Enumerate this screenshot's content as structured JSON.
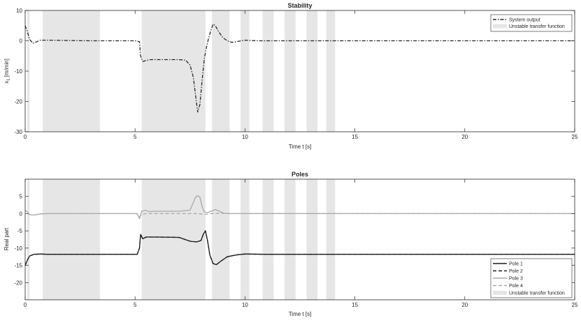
{
  "chart_data": [
    {
      "type": "line",
      "title": "Stability",
      "xlabel": "Time t [s]",
      "ylabel_main": "x",
      "ylabel_sub": "1",
      "ylabel_unit": "[m/min]",
      "xlim": [
        0,
        25
      ],
      "ylim": [
        -30,
        10
      ],
      "xticks": [
        0,
        5,
        10,
        15,
        20,
        25
      ],
      "yticks": [
        -30,
        -20,
        -10,
        0,
        10
      ],
      "grid": false,
      "legend_position": "top-right",
      "legend": [
        "System output",
        "Unstable transfer function"
      ],
      "unstable_intervals": [
        [
          0.1,
          0.2
        ],
        [
          0.8,
          3.4
        ],
        [
          5.3,
          8.2
        ],
        [
          8.5,
          9.3
        ],
        [
          9.8,
          10.2
        ],
        [
          10.8,
          11.3
        ],
        [
          11.8,
          12.3
        ],
        [
          12.8,
          13.3
        ],
        [
          13.7,
          14.1
        ]
      ],
      "series": [
        {
          "name": "System output",
          "color": "#262626",
          "dash": "dashdot",
          "points": [
            [
              0,
              5
            ],
            [
              0.1,
              3
            ],
            [
              0.2,
              0.5
            ],
            [
              0.35,
              -0.8
            ],
            [
              0.5,
              -0.4
            ],
            [
              0.7,
              0.2
            ],
            [
              1.0,
              0.2
            ],
            [
              2,
              0.1
            ],
            [
              3,
              0
            ],
            [
              4,
              0
            ],
            [
              5.0,
              0
            ],
            [
              5.2,
              -0.3
            ],
            [
              5.25,
              -5
            ],
            [
              5.35,
              -6.8
            ],
            [
              5.5,
              -6.5
            ],
            [
              5.7,
              -6.2
            ],
            [
              6.5,
              -6.2
            ],
            [
              7.0,
              -6.2
            ],
            [
              7.3,
              -6.4
            ],
            [
              7.5,
              -8
            ],
            [
              7.65,
              -12
            ],
            [
              7.75,
              -18
            ],
            [
              7.85,
              -23.5
            ],
            [
              7.95,
              -21
            ],
            [
              8.05,
              -13
            ],
            [
              8.15,
              -6
            ],
            [
              8.25,
              -2
            ],
            [
              8.35,
              1
            ],
            [
              8.45,
              3.5
            ],
            [
              8.55,
              5.5
            ],
            [
              8.65,
              5
            ],
            [
              8.8,
              3
            ],
            [
              9.0,
              1
            ],
            [
              9.2,
              0
            ],
            [
              9.4,
              -0.5
            ],
            [
              9.6,
              -0.3
            ],
            [
              10,
              0.2
            ],
            [
              10.5,
              0
            ],
            [
              11,
              0
            ],
            [
              12,
              0
            ],
            [
              14,
              0
            ],
            [
              16,
              0
            ],
            [
              20,
              0
            ],
            [
              25,
              0
            ]
          ]
        }
      ]
    },
    {
      "type": "line",
      "title": "Poles",
      "xlabel": "Time t [s]",
      "ylabel": "Real part",
      "xlim": [
        0,
        25
      ],
      "ylim": [
        -25,
        10
      ],
      "xticks": [
        0,
        5,
        10,
        15,
        20,
        25
      ],
      "yticks": [
        -20,
        -15,
        -10,
        -5,
        0,
        5
      ],
      "grid": false,
      "legend_position": "bottom-right",
      "legend": [
        "Pole 1",
        "Pole 2",
        "Pole 3",
        "Pole 4",
        "Unstable transfer function"
      ],
      "unstable_intervals": [
        [
          0.1,
          0.2
        ],
        [
          0.8,
          3.4
        ],
        [
          5.3,
          8.2
        ],
        [
          8.5,
          9.3
        ],
        [
          9.8,
          10.2
        ],
        [
          10.8,
          11.3
        ],
        [
          11.8,
          12.3
        ],
        [
          12.8,
          13.3
        ],
        [
          13.7,
          14.1
        ]
      ],
      "series": [
        {
          "name": "Pole 1",
          "color": "#1a1a1a",
          "dash": "solid",
          "points": [
            [
              0,
              -15
            ],
            [
              0.1,
              -13.5
            ],
            [
              0.2,
              -12.3
            ],
            [
              0.4,
              -11.8
            ],
            [
              0.7,
              -11.7
            ],
            [
              1,
              -11.8
            ],
            [
              2,
              -11.8
            ],
            [
              3,
              -11.8
            ],
            [
              4,
              -11.8
            ],
            [
              5.1,
              -11.8
            ],
            [
              5.2,
              -10
            ],
            [
              5.25,
              -6
            ],
            [
              5.35,
              -7.3
            ],
            [
              5.5,
              -6.8
            ],
            [
              6,
              -6.8
            ],
            [
              7,
              -6.9
            ],
            [
              7.5,
              -8
            ],
            [
              7.8,
              -8.2
            ],
            [
              8.0,
              -7.8
            ],
            [
              8.1,
              -6
            ],
            [
              8.2,
              -5
            ],
            [
              8.3,
              -8
            ],
            [
              8.4,
              -12
            ],
            [
              8.55,
              -14.5
            ],
            [
              8.7,
              -14.8
            ],
            [
              8.9,
              -13.8
            ],
            [
              9.2,
              -12.5
            ],
            [
              9.6,
              -12
            ],
            [
              10,
              -11.7
            ],
            [
              11,
              -11.8
            ],
            [
              12,
              -11.8
            ],
            [
              15,
              -11.8
            ],
            [
              20,
              -11.8
            ],
            [
              25,
              -11.8
            ]
          ]
        },
        {
          "name": "Pole 2",
          "color": "#1a1a1a",
          "dash": "dashed",
          "points": [
            [
              0,
              -15
            ],
            [
              0.1,
              -13.5
            ],
            [
              0.2,
              -12.3
            ],
            [
              0.4,
              -11.8
            ],
            [
              0.7,
              -11.7
            ],
            [
              1,
              -11.8
            ],
            [
              2,
              -11.8
            ],
            [
              3,
              -11.8
            ],
            [
              4,
              -11.8
            ],
            [
              5.1,
              -11.8
            ],
            [
              5.2,
              -10
            ],
            [
              5.25,
              -6
            ],
            [
              5.35,
              -7.3
            ],
            [
              5.5,
              -6.8
            ],
            [
              6,
              -6.8
            ],
            [
              7,
              -6.9
            ],
            [
              7.5,
              -8
            ],
            [
              7.8,
              -8.2
            ],
            [
              8.0,
              -7.8
            ],
            [
              8.1,
              -6
            ],
            [
              8.2,
              -5
            ],
            [
              8.3,
              -8
            ],
            [
              8.4,
              -12
            ],
            [
              8.55,
              -14.5
            ],
            [
              8.7,
              -14.8
            ],
            [
              8.9,
              -13.8
            ],
            [
              9.2,
              -12.5
            ],
            [
              9.6,
              -12
            ],
            [
              10,
              -11.7
            ],
            [
              11,
              -11.8
            ],
            [
              12,
              -11.8
            ],
            [
              15,
              -11.8
            ],
            [
              20,
              -11.8
            ],
            [
              25,
              -11.8
            ]
          ]
        },
        {
          "name": "Pole 3",
          "color": "#a8a8a8",
          "dash": "solid",
          "points": [
            [
              0,
              1
            ],
            [
              0.1,
              0.5
            ],
            [
              0.2,
              -0.3
            ],
            [
              0.4,
              -0.4
            ],
            [
              0.7,
              -0.1
            ],
            [
              1,
              0
            ],
            [
              2,
              0
            ],
            [
              3,
              0
            ],
            [
              4,
              0
            ],
            [
              5.1,
              0
            ],
            [
              5.2,
              -1.5
            ],
            [
              5.3,
              0.7
            ],
            [
              5.5,
              1
            ],
            [
              5.6,
              0.6
            ],
            [
              6,
              0.7
            ],
            [
              7,
              0.7
            ],
            [
              7.5,
              1
            ],
            [
              7.6,
              2.5
            ],
            [
              7.75,
              4.8
            ],
            [
              7.85,
              5.2
            ],
            [
              7.95,
              4.8
            ],
            [
              8.05,
              2
            ],
            [
              8.15,
              0.5
            ],
            [
              8.3,
              0.3
            ],
            [
              8.5,
              0.8
            ],
            [
              8.65,
              1.2
            ],
            [
              8.8,
              0.8
            ],
            [
              9.0,
              0.2
            ],
            [
              9.2,
              0
            ],
            [
              10,
              0
            ],
            [
              12,
              0
            ],
            [
              15,
              0
            ],
            [
              20,
              0
            ],
            [
              25,
              0
            ]
          ]
        },
        {
          "name": "Pole 4",
          "color": "#a8a8a8",
          "dash": "dashed",
          "points": [
            [
              0,
              1
            ],
            [
              0.1,
              0.5
            ],
            [
              0.2,
              -0.3
            ],
            [
              0.4,
              -0.4
            ],
            [
              0.7,
              -0.1
            ],
            [
              1,
              0
            ],
            [
              2,
              0
            ],
            [
              3,
              0
            ],
            [
              4,
              0
            ],
            [
              5.1,
              0
            ],
            [
              5.2,
              -1
            ],
            [
              5.3,
              -0.3
            ],
            [
              5.5,
              0
            ],
            [
              6,
              0
            ],
            [
              7,
              0
            ],
            [
              7.8,
              0
            ],
            [
              8.0,
              -0.1
            ],
            [
              8.2,
              -0.2
            ],
            [
              8.5,
              0
            ],
            [
              9,
              0.1
            ],
            [
              9.3,
              0
            ],
            [
              10,
              0
            ],
            [
              12,
              0
            ],
            [
              15,
              0
            ],
            [
              20,
              0
            ],
            [
              25,
              0
            ]
          ]
        }
      ]
    }
  ],
  "colors": {
    "unstable_band": "#e6e6e6",
    "axis": "#262626"
  }
}
